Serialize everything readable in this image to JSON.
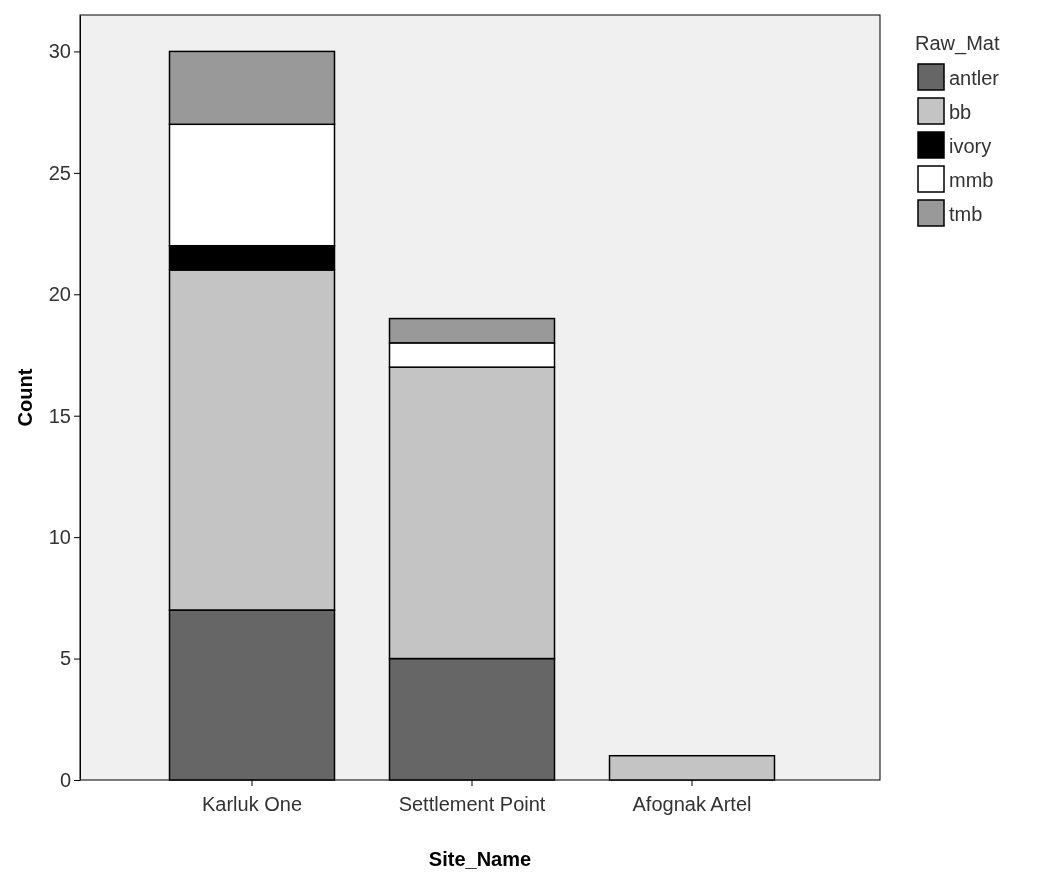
{
  "chart_data": {
    "type": "bar",
    "xlabel": "Site_Name",
    "ylabel": "Count",
    "legend_title": "Raw_Mat",
    "categories": [
      "Karluk One",
      "Settlement Point",
      "Afognak Artel"
    ],
    "stacked": true,
    "series": [
      {
        "name": "antler",
        "color": "#666666",
        "values": [
          7,
          5,
          0
        ]
      },
      {
        "name": "bb",
        "color": "#c4c4c4",
        "values": [
          14,
          12,
          1
        ]
      },
      {
        "name": "ivory",
        "color": "#000000",
        "values": [
          1,
          0,
          0
        ]
      },
      {
        "name": "mmb",
        "color": "#ffffff",
        "values": [
          5,
          1,
          0
        ]
      },
      {
        "name": "tmb",
        "color": "#999999",
        "values": [
          3,
          1,
          0
        ]
      }
    ],
    "ylim": [
      0,
      31.5
    ],
    "yticks": [
      0,
      5,
      10,
      15,
      20,
      25,
      30
    ],
    "grid": false,
    "legend": "top right"
  }
}
